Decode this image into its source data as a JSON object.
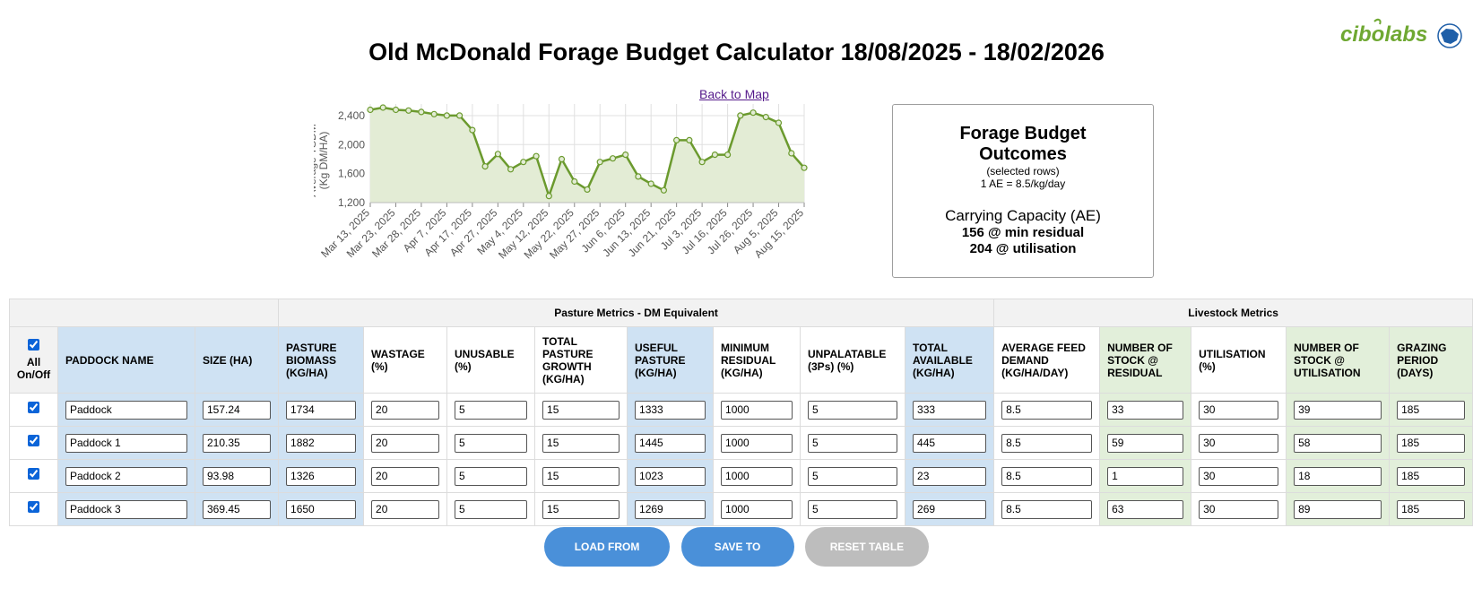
{
  "header": {
    "title": "Old McDonald Forage Budget Calculator 18/08/2025 - 18/02/2026",
    "back_link": "Back to Map",
    "logo_text": "cibolabs"
  },
  "outcomes": {
    "title_line1": "Forage Budget",
    "title_line2": "Outcomes",
    "selected_rows": "(selected rows)",
    "ae_def": "1 AE = 8.5/kg/day",
    "carrying_capacity": "Carrying Capacity (AE)",
    "min_residual": "156 @ min residual",
    "utilisation": "204 @ utilisation"
  },
  "chart_data": {
    "type": "area",
    "ylabel_line1": "Average TSDM",
    "ylabel_line2": "(Kg DM/HA)",
    "ylim": [
      1200,
      2560
    ],
    "yticks": [
      1200,
      1600,
      2000,
      2400
    ],
    "ytick_labels": [
      "1,200",
      "1,600",
      "2,000",
      "2,400"
    ],
    "grid": true,
    "xtick_labels": [
      "Mar 13, 2025",
      "Mar 23, 2025",
      "Mar 28, 2025",
      "Apr 7, 2025",
      "Apr 17, 2025",
      "Apr 27, 2025",
      "May 4, 2025",
      "May 12, 2025",
      "May 22, 2025",
      "May 27, 2025",
      "Jun 6, 2025",
      "Jun 13, 2025",
      "Jun 21, 2025",
      "Jul 3, 2025",
      "Jul 16, 2025",
      "Jul 26, 2025",
      "Aug 5, 2025",
      "Aug 15, 2025"
    ],
    "values": [
      2480,
      2510,
      2480,
      2470,
      2450,
      2420,
      2400,
      2400,
      2200,
      1700,
      1870,
      1660,
      1760,
      1840,
      1290,
      1800,
      1490,
      1380,
      1760,
      1810,
      1860,
      1560,
      1460,
      1370,
      2060,
      2060,
      1760,
      1860,
      1860,
      2400,
      2440,
      2380,
      2300,
      1880,
      1680
    ],
    "colors": {
      "line": "#6b9a2e",
      "fill": "#e3ecd5",
      "grid": "#e0e0e0"
    }
  },
  "table": {
    "group_headers": [
      "Pasture Metrics - DM Equivalent",
      "Livestock Metrics"
    ],
    "all_label_line1": "All",
    "all_label_line2": "On/Off",
    "columns": [
      {
        "l": "PADDOCK NAME",
        "bg": "blue"
      },
      {
        "l": "SIZE (HA)",
        "bg": "blue"
      },
      {
        "l": "PASTURE BIOMASS (KG/HA)",
        "bg": "blue"
      },
      {
        "l": "WASTAGE (%)",
        "bg": "white"
      },
      {
        "l": "UNUSABLE (%)",
        "bg": "white"
      },
      {
        "l": "TOTAL PASTURE GROWTH (KG/HA)",
        "bg": "white"
      },
      {
        "l": "USEFUL PASTURE (KG/HA)",
        "bg": "blue"
      },
      {
        "l": "MINIMUM RESIDUAL (KG/HA)",
        "bg": "white"
      },
      {
        "l": "UNPALATABLE (3Ps) (%)",
        "bg": "white"
      },
      {
        "l": "TOTAL AVAILABLE (KG/HA)",
        "bg": "blue"
      },
      {
        "l": "AVERAGE FEED DEMAND (KG/HA/DAY)",
        "bg": "white"
      },
      {
        "l": "NUMBER OF STOCK @ RESIDUAL",
        "bg": "green"
      },
      {
        "l": "UTILISATION (%)",
        "bg": "white"
      },
      {
        "l": "NUMBER OF STOCK @ UTILISATION",
        "bg": "green"
      },
      {
        "l": "GRAZING PERIOD (DAYS)",
        "bg": "green"
      }
    ],
    "rows": [
      {
        "checked": true,
        "cells": [
          "Paddock",
          "157.24",
          "1734",
          "20",
          "5",
          "15",
          "1333",
          "1000",
          "5",
          "333",
          "8.5",
          "33",
          "30",
          "39",
          "185"
        ]
      },
      {
        "checked": true,
        "cells": [
          "Paddock 1",
          "210.35",
          "1882",
          "20",
          "5",
          "15",
          "1445",
          "1000",
          "5",
          "445",
          "8.5",
          "59",
          "30",
          "58",
          "185"
        ]
      },
      {
        "checked": true,
        "cells": [
          "Paddock 2",
          "93.98",
          "1326",
          "20",
          "5",
          "15",
          "1023",
          "1000",
          "5",
          "23",
          "8.5",
          "1",
          "30",
          "18",
          "185"
        ]
      },
      {
        "checked": true,
        "cells": [
          "Paddock 3",
          "369.45",
          "1650",
          "20",
          "5",
          "15",
          "1269",
          "1000",
          "5",
          "269",
          "8.5",
          "63",
          "30",
          "89",
          "185"
        ]
      }
    ]
  },
  "buttons": {
    "load": "LOAD FROM EXCEL",
    "save": "SAVE TO EXCEL",
    "reset": "RESET TABLE DATA"
  }
}
